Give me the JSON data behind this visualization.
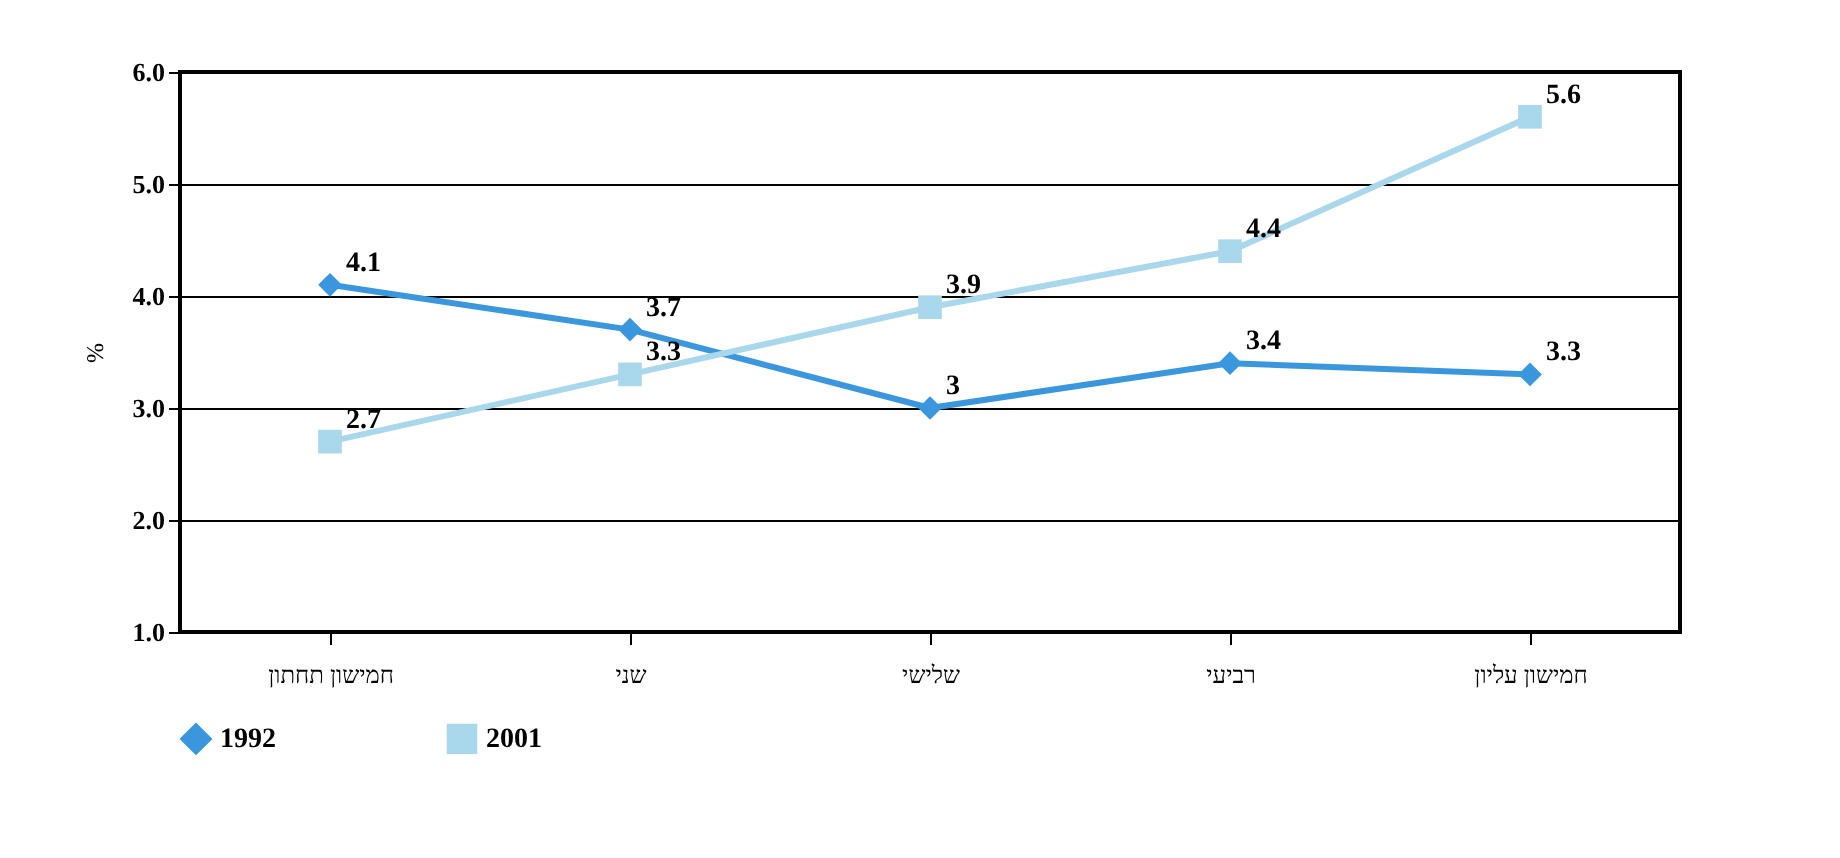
{
  "chart_data": {
    "type": "line",
    "ylabel": "%",
    "categories": [
      "חמישון תחתון",
      "שני",
      "שלישי",
      "רביעי",
      "חמישון עליון"
    ],
    "series": [
      {
        "name": "1992",
        "color": "#3a97de",
        "marker": "diamond",
        "values": [
          4.1,
          3.7,
          3,
          3.4,
          3.3
        ]
      },
      {
        "name": "2001",
        "color": "#a9d7ec",
        "marker": "square",
        "values": [
          2.7,
          3.3,
          3.9,
          4.4,
          5.6
        ]
      }
    ],
    "ylim": [
      1,
      6
    ],
    "yticks": [
      {
        "value": 1,
        "label": "1.0"
      },
      {
        "value": 2,
        "label": "2.0"
      },
      {
        "value": 3,
        "label": "3.0"
      },
      {
        "value": 4,
        "label": "4.0"
      },
      {
        "value": 5,
        "label": "5.0"
      },
      {
        "value": 6,
        "label": "6.0"
      }
    ],
    "grid": "y",
    "legend": "bottom",
    "data_labels": true
  }
}
